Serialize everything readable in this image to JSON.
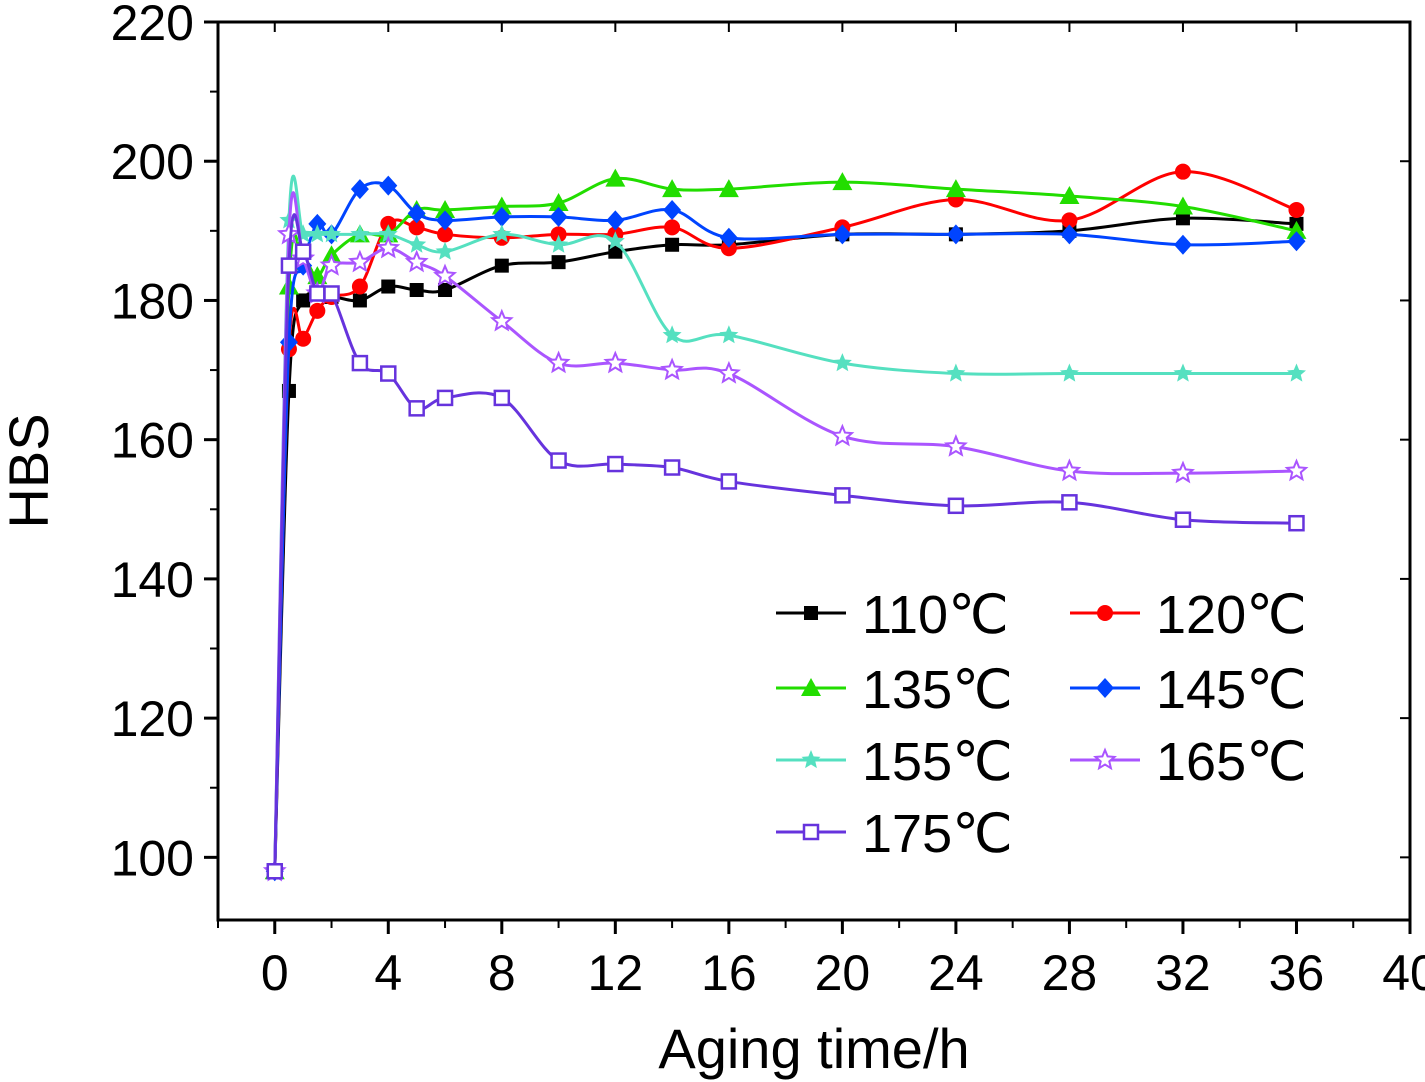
{
  "chart_data": {
    "type": "line",
    "title": "",
    "xlabel": "Aging time/h",
    "ylabel": "HBS",
    "xlim": [
      -2,
      40
    ],
    "ylim": [
      91,
      220
    ],
    "xticks": [
      0,
      4,
      8,
      12,
      16,
      20,
      24,
      28,
      32,
      36,
      40
    ],
    "yticks": [
      100,
      120,
      140,
      160,
      180,
      200,
      220
    ],
    "grid": false,
    "legend_position": "bottom-right",
    "series": [
      {
        "name": "110℃",
        "color": "#000000",
        "marker": "square-filled",
        "x": [
          0,
          0.5,
          1,
          2,
          3,
          4,
          5,
          6,
          8,
          10,
          12,
          14,
          16,
          20,
          24,
          28,
          32,
          36
        ],
        "y": [
          98,
          167,
          180,
          180.5,
          180,
          182,
          181.5,
          181.5,
          185,
          185.5,
          187,
          188,
          188,
          189.5,
          189.5,
          190,
          191.8,
          191
        ]
      },
      {
        "name": "120℃",
        "color": "#ff0000",
        "marker": "circle-filled",
        "x": [
          0,
          0.5,
          1,
          1.5,
          2,
          3,
          4,
          5,
          6,
          8,
          10,
          12,
          14,
          16,
          20,
          24,
          28,
          32,
          36
        ],
        "y": [
          98,
          173,
          174.5,
          178.5,
          180.5,
          182,
          191,
          190.5,
          189.5,
          189,
          189.5,
          189.5,
          190.5,
          187.5,
          190.5,
          194.5,
          191.5,
          198.5,
          193
        ]
      },
      {
        "name": "135℃",
        "color": "#22dd00",
        "marker": "triangle-filled",
        "x": [
          0,
          0.5,
          1,
          1.5,
          2,
          3,
          4,
          5,
          6,
          8,
          10,
          12,
          14,
          16,
          20,
          24,
          28,
          32,
          36
        ],
        "y": [
          98,
          182,
          185.5,
          183.5,
          186.5,
          189.5,
          189.5,
          193,
          193,
          193.5,
          194,
          197.5,
          196,
          196,
          197,
          196,
          195,
          193.5,
          190
        ]
      },
      {
        "name": "145℃",
        "color": "#0044ff",
        "marker": "diamond-filled",
        "x": [
          0,
          0.5,
          1,
          1.5,
          2,
          3,
          4,
          5,
          6,
          8,
          10,
          12,
          14,
          16,
          20,
          24,
          28,
          32,
          36
        ],
        "y": [
          98,
          174,
          185,
          191,
          189.5,
          196,
          196.5,
          192.5,
          191.5,
          192,
          192,
          191.5,
          193,
          189,
          189.5,
          189.5,
          189.5,
          188,
          188.5
        ]
      },
      {
        "name": "155℃",
        "color": "#55e0c0",
        "marker": "star-filled",
        "x": [
          0,
          0.5,
          1,
          1.5,
          2,
          3,
          4,
          5,
          6,
          8,
          10,
          12,
          14,
          16,
          20,
          24,
          28,
          32,
          36
        ],
        "y": [
          98,
          191.5,
          189.5,
          189.5,
          189.5,
          189.5,
          189.5,
          188,
          187,
          189.5,
          188,
          188.5,
          175,
          175,
          171,
          169.5,
          169.5,
          169.5,
          169.5
        ]
      },
      {
        "name": "165℃",
        "color": "#aa55ff",
        "marker": "star-open",
        "x": [
          0,
          0.5,
          1,
          1.5,
          2,
          3,
          4,
          5,
          6,
          8,
          10,
          12,
          14,
          16,
          20,
          24,
          28,
          32,
          36
        ],
        "y": [
          98,
          189.5,
          186,
          181,
          185,
          185.5,
          187.5,
          185.5,
          183.5,
          177,
          171,
          171,
          170,
          169.5,
          160.5,
          159,
          155.5,
          155.2,
          155.5
        ]
      },
      {
        "name": "175℃",
        "color": "#6633dd",
        "marker": "square-open",
        "x": [
          0,
          0.5,
          1,
          1.5,
          2,
          3,
          4,
          5,
          6,
          8,
          10,
          12,
          14,
          16,
          20,
          24,
          28,
          32,
          36
        ],
        "y": [
          98,
          185,
          187,
          181,
          181,
          171,
          169.5,
          164.5,
          166,
          166,
          157,
          156.5,
          156,
          154,
          152,
          150.5,
          151,
          148.5,
          148
        ]
      }
    ]
  }
}
